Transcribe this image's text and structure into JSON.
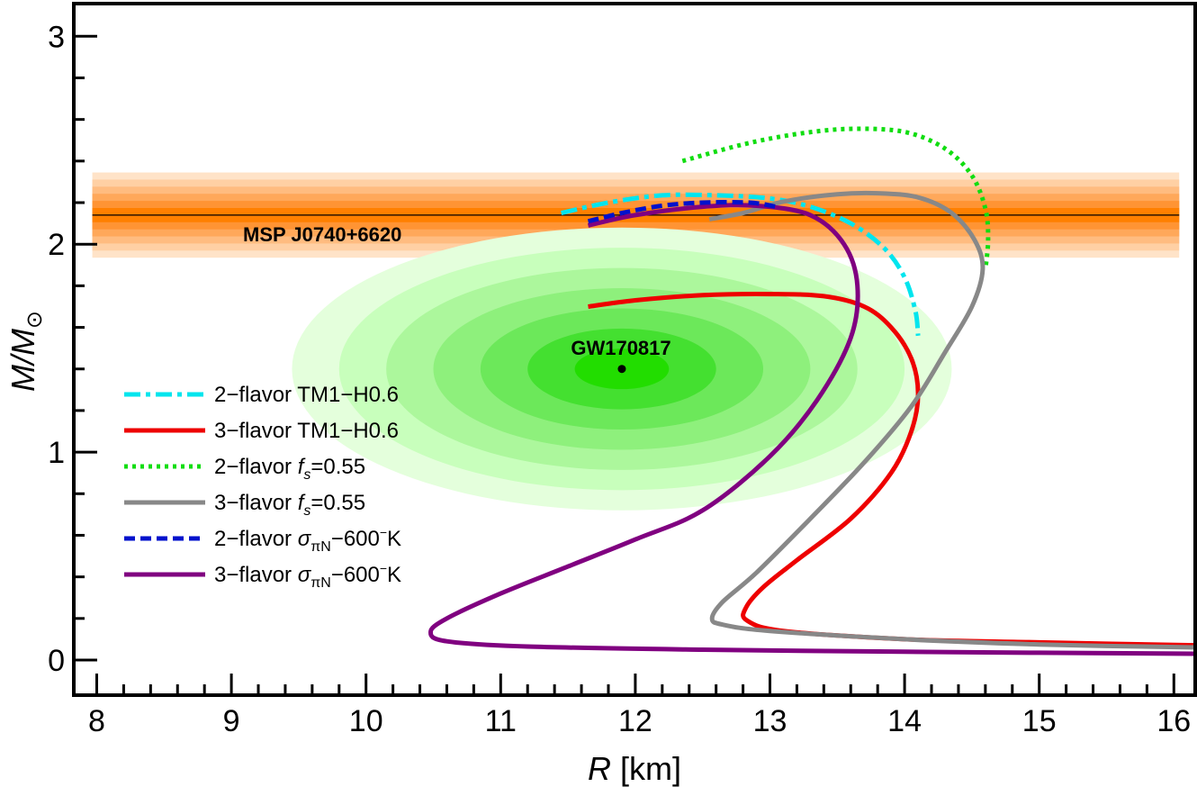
{
  "chart_data": {
    "type": "line",
    "xlabel": "R [km]",
    "ylabel": "M/M⊙",
    "xlim": [
      7.8,
      16.2
    ],
    "ylim": [
      -0.17,
      3.17
    ],
    "x_ticks": [
      "8",
      "9",
      "10",
      "11",
      "12",
      "13",
      "14",
      "15",
      "16"
    ],
    "y_ticks": [
      "0",
      "1",
      "2",
      "3"
    ],
    "colors": {
      "band_core": "#ff8000",
      "band_light": "#ffd8b0",
      "ellipse_dark": "#22dd00",
      "ellipse_light": "#e0ffd8"
    },
    "band": {
      "label": "MSP J0740+6620",
      "center": 2.14,
      "lower": 1.94,
      "upper": 2.35
    },
    "gw": {
      "label": "GW170817",
      "center": [
        11.9,
        1.4
      ],
      "outer_semi_axes_km_msun": [
        2.45,
        0.68
      ]
    },
    "series": [
      {
        "name": "2-flavor TM1-H0.6",
        "color": "#00e5ee",
        "style": "dashdot",
        "points": [
          [
            11.45,
            2.15
          ],
          [
            11.8,
            2.2
          ],
          [
            12.2,
            2.235
          ],
          [
            12.6,
            2.235
          ],
          [
            13.0,
            2.22
          ],
          [
            13.3,
            2.18
          ],
          [
            13.6,
            2.1
          ],
          [
            13.85,
            1.98
          ],
          [
            14.0,
            1.84
          ],
          [
            14.08,
            1.68
          ],
          [
            14.1,
            1.56
          ]
        ]
      },
      {
        "name": "3-flavor TM1-H0.6",
        "color": "#ee0000",
        "style": "solid",
        "points": [
          [
            11.65,
            1.7
          ],
          [
            12.0,
            1.73
          ],
          [
            12.5,
            1.755
          ],
          [
            13.0,
            1.76
          ],
          [
            13.4,
            1.75
          ],
          [
            13.7,
            1.7
          ],
          [
            13.9,
            1.6
          ],
          [
            14.05,
            1.45
          ],
          [
            14.1,
            1.28
          ],
          [
            14.05,
            1.1
          ],
          [
            13.9,
            0.9
          ],
          [
            13.6,
            0.68
          ],
          [
            13.2,
            0.48
          ],
          [
            12.95,
            0.35
          ],
          [
            12.82,
            0.25
          ],
          [
            12.83,
            0.19
          ],
          [
            13.1,
            0.14
          ],
          [
            14.0,
            0.1
          ],
          [
            15.0,
            0.085
          ],
          [
            16.2,
            0.07
          ]
        ]
      },
      {
        "name": "2-flavor fs=0.55",
        "color": "#11dd11",
        "style": "dotted",
        "points": [
          [
            12.35,
            2.4
          ],
          [
            12.8,
            2.48
          ],
          [
            13.2,
            2.53
          ],
          [
            13.6,
            2.555
          ],
          [
            14.0,
            2.54
          ],
          [
            14.3,
            2.46
          ],
          [
            14.5,
            2.33
          ],
          [
            14.6,
            2.17
          ],
          [
            14.62,
            2.02
          ],
          [
            14.6,
            1.88
          ]
        ]
      },
      {
        "name": "3-flavor fs=0.55",
        "color": "#888888",
        "style": "solid",
        "points": [
          [
            12.55,
            2.12
          ],
          [
            12.8,
            2.15
          ],
          [
            13.1,
            2.205
          ],
          [
            13.5,
            2.24
          ],
          [
            13.8,
            2.245
          ],
          [
            14.1,
            2.225
          ],
          [
            14.35,
            2.15
          ],
          [
            14.52,
            2.02
          ],
          [
            14.58,
            1.88
          ],
          [
            14.5,
            1.7
          ],
          [
            14.3,
            1.48
          ],
          [
            14.05,
            1.22
          ],
          [
            13.7,
            0.95
          ],
          [
            13.3,
            0.68
          ],
          [
            12.9,
            0.42
          ],
          [
            12.65,
            0.28
          ],
          [
            12.57,
            0.2
          ],
          [
            12.65,
            0.17
          ],
          [
            13.0,
            0.14
          ],
          [
            14.0,
            0.1
          ],
          [
            15.0,
            0.075
          ],
          [
            16.2,
            0.06
          ]
        ]
      },
      {
        "name": "2-flavor σπN-600⁻K",
        "color": "#0011cc",
        "style": "dashed",
        "points": [
          [
            11.65,
            2.11
          ],
          [
            11.9,
            2.15
          ],
          [
            12.2,
            2.185
          ],
          [
            12.5,
            2.2
          ],
          [
            12.85,
            2.2
          ],
          [
            13.05,
            2.18
          ]
        ]
      },
      {
        "name": "3-flavor σπN-600⁻K",
        "color": "#800080",
        "style": "solid",
        "points": [
          [
            11.65,
            2.09
          ],
          [
            12.0,
            2.14
          ],
          [
            12.5,
            2.18
          ],
          [
            12.9,
            2.185
          ],
          [
            13.3,
            2.14
          ],
          [
            13.55,
            2.0
          ],
          [
            13.65,
            1.8
          ],
          [
            13.6,
            1.55
          ],
          [
            13.35,
            1.25
          ],
          [
            13.0,
            0.98
          ],
          [
            12.5,
            0.72
          ],
          [
            12.0,
            0.58
          ],
          [
            11.5,
            0.45
          ],
          [
            11.0,
            0.32
          ],
          [
            10.6,
            0.2
          ],
          [
            10.48,
            0.135
          ],
          [
            10.6,
            0.09
          ],
          [
            11.2,
            0.065
          ],
          [
            12.5,
            0.05
          ],
          [
            14.0,
            0.04
          ],
          [
            15.0,
            0.035
          ],
          [
            16.2,
            0.03
          ]
        ]
      }
    ],
    "legend": [
      {
        "prefix": "2−flavor ",
        "name": "TM1−H0.6",
        "kind": "tm1"
      },
      {
        "prefix": "3−flavor ",
        "name": "TM1−H0.6",
        "kind": "tm1"
      },
      {
        "prefix": "2−flavor ",
        "name": "f_s=0.55",
        "kind": "fs",
        "var": "f",
        "sub": "s",
        "rest": "=0.55"
      },
      {
        "prefix": "3−flavor ",
        "name": "f_s=0.55",
        "kind": "fs",
        "var": "f",
        "sub": "s",
        "rest": "=0.55"
      },
      {
        "prefix": "2−flavor ",
        "name": "σ_πN−600⁻K",
        "kind": "sigma",
        "var": "σ",
        "sub": "πN",
        "rest": "−600",
        "sup": "−",
        "tail": "K"
      },
      {
        "prefix": "3−flavor ",
        "name": "σ_πN−600⁻K",
        "kind": "sigma",
        "var": "σ",
        "sub": "πN",
        "rest": "−600",
        "sup": "−",
        "tail": "K"
      }
    ]
  }
}
